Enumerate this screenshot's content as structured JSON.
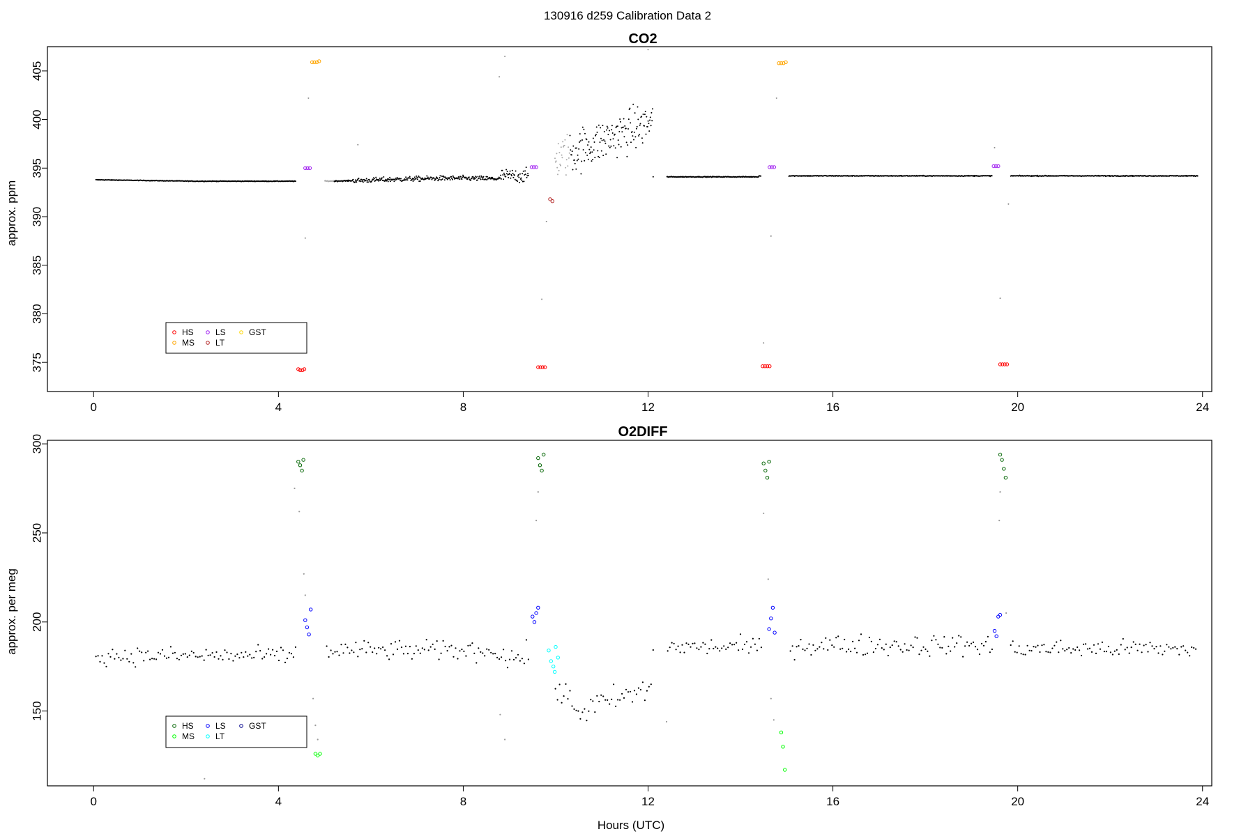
{
  "figure": {
    "title": "130916   d259   Calibration Data 2",
    "xlabel": "Hours (UTC)"
  },
  "chart_data": [
    {
      "type": "scatter",
      "title": "CO2",
      "xlabel": "",
      "ylabel": "approx. ppm",
      "xlim": [
        -1.0,
        24.2
      ],
      "ylim": [
        372.0,
        407.5
      ],
      "xticks": [
        0,
        4,
        8,
        12,
        16,
        20,
        24
      ],
      "yticks": [
        375,
        380,
        385,
        390,
        395,
        400,
        405
      ],
      "legend": {
        "position": "bottom-left",
        "entries": [
          {
            "label": "HS",
            "color": "#ff0000"
          },
          {
            "label": "LS",
            "color": "#a020f0"
          },
          {
            "label": "GST",
            "color": "#ffd700"
          },
          {
            "label": "MS",
            "color": "#ffa500"
          },
          {
            "label": "LT",
            "color": "#b22222"
          }
        ]
      },
      "series": [
        {
          "name": "HS",
          "color": "#ff0000",
          "points": [
            [
              4.43,
              374.3
            ],
            [
              4.47,
              374.2
            ],
            [
              4.52,
              374.2
            ],
            [
              4.56,
              374.3
            ],
            [
              9.62,
              374.5
            ],
            [
              9.67,
              374.5
            ],
            [
              9.72,
              374.5
            ],
            [
              9.77,
              374.5
            ],
            [
              14.48,
              374.6
            ],
            [
              14.53,
              374.6
            ],
            [
              14.58,
              374.6
            ],
            [
              14.63,
              374.6
            ],
            [
              19.62,
              374.8
            ],
            [
              19.67,
              374.8
            ],
            [
              19.72,
              374.8
            ],
            [
              19.77,
              374.8
            ]
          ]
        },
        {
          "name": "MS",
          "color": "#ffa500",
          "points": [
            [
              4.73,
              405.9
            ],
            [
              4.78,
              405.9
            ],
            [
              4.83,
              405.9
            ],
            [
              4.88,
              406.0
            ],
            [
              14.83,
              405.8
            ],
            [
              14.88,
              405.8
            ],
            [
              14.93,
              405.8
            ],
            [
              14.98,
              405.9
            ]
          ]
        },
        {
          "name": "LS",
          "color": "#a020f0",
          "points": [
            [
              4.58,
              395.0
            ],
            [
              4.63,
              395.0
            ],
            [
              4.68,
              395.0
            ],
            [
              9.48,
              395.1
            ],
            [
              9.53,
              395.1
            ],
            [
              9.58,
              395.1
            ],
            [
              14.63,
              395.1
            ],
            [
              14.68,
              395.1
            ],
            [
              14.73,
              395.1
            ],
            [
              19.48,
              395.2
            ],
            [
              19.53,
              395.2
            ],
            [
              19.58,
              395.2
            ]
          ]
        },
        {
          "name": "LT",
          "color": "#b22222",
          "points": [
            [
              9.88,
              391.8
            ],
            [
              9.93,
              391.6
            ]
          ]
        }
      ]
    },
    {
      "type": "scatter",
      "title": "O2DIFF",
      "xlabel": "Hours (UTC)",
      "ylabel": "approx. per meg",
      "xlim": [
        -1.0,
        24.2
      ],
      "ylim": [
        108,
        302
      ],
      "xticks": [
        0,
        4,
        8,
        12,
        16,
        20,
        24
      ],
      "yticks": [
        150,
        200,
        250,
        300
      ],
      "legend": {
        "position": "bottom-left",
        "entries": [
          {
            "label": "HS",
            "color": "#006400"
          },
          {
            "label": "LS",
            "color": "#0000ff"
          },
          {
            "label": "GST",
            "color": "#00008b"
          },
          {
            "label": "MS",
            "color": "#00ff00"
          },
          {
            "label": "LT",
            "color": "#00ffff"
          }
        ]
      },
      "series": [
        {
          "name": "HS",
          "color": "#006400",
          "points": [
            [
              4.43,
              290
            ],
            [
              4.47,
              288
            ],
            [
              4.51,
              285
            ],
            [
              4.54,
              291
            ],
            [
              9.62,
              292
            ],
            [
              9.66,
              288
            ],
            [
              9.7,
              285
            ],
            [
              9.74,
              294
            ],
            [
              14.5,
              289
            ],
            [
              14.54,
              285
            ],
            [
              14.58,
              281
            ],
            [
              14.62,
              290
            ],
            [
              19.62,
              294
            ],
            [
              19.66,
              291
            ],
            [
              19.7,
              286
            ],
            [
              19.74,
              281
            ]
          ]
        },
        {
          "name": "LS",
          "color": "#0000ff",
          "points": [
            [
              4.58,
              201
            ],
            [
              4.62,
              197
            ],
            [
              4.66,
              193
            ],
            [
              4.7,
              207
            ],
            [
              9.5,
              203
            ],
            [
              9.54,
              200
            ],
            [
              9.58,
              205
            ],
            [
              9.62,
              208
            ],
            [
              14.62,
              196
            ],
            [
              14.66,
              202
            ],
            [
              14.7,
              208
            ],
            [
              14.74,
              194
            ],
            [
              19.5,
              195
            ],
            [
              19.54,
              192
            ],
            [
              19.58,
              203
            ],
            [
              19.62,
              204
            ]
          ]
        },
        {
          "name": "MS",
          "color": "#00ff00",
          "points": [
            [
              4.8,
              126
            ],
            [
              4.85,
              125
            ],
            [
              4.9,
              126
            ],
            [
              14.88,
              138
            ],
            [
              14.92,
              130
            ],
            [
              14.96,
              117
            ]
          ]
        },
        {
          "name": "LT",
          "color": "#00ffff",
          "points": [
            [
              9.85,
              184
            ],
            [
              9.9,
              178
            ],
            [
              9.95,
              175
            ],
            [
              10.0,
              186
            ],
            [
              10.05,
              180
            ],
            [
              9.98,
              172
            ]
          ]
        }
      ]
    }
  ]
}
